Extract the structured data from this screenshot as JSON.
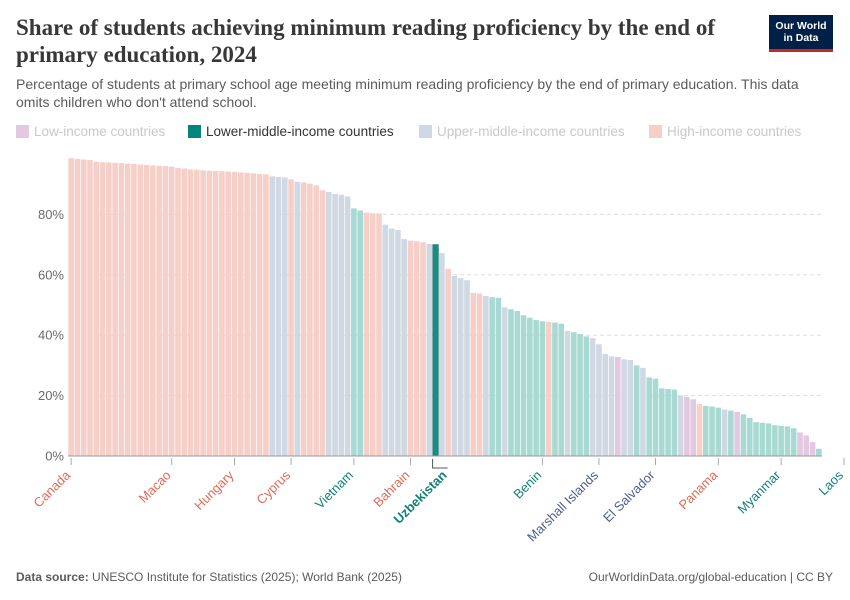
{
  "title": "Share of students achieving minimum reading proficiency by the end of primary education, 2024",
  "subtitle": "Percentage of students at primary school age meeting minimum reading proficiency by the end of primary education. This data omits children who don't attend school.",
  "logo": {
    "line1": "Our World",
    "line2": "in Data"
  },
  "legend": [
    {
      "label": "Low-income countries",
      "color": "#e3c8e1",
      "state": "muted"
    },
    {
      "label": "Lower-middle-income countries",
      "color": "#00847e",
      "state": "active"
    },
    {
      "label": "Upper-middle-income countries",
      "color": "#cfd8e3",
      "state": "muted"
    },
    {
      "label": "High-income countries",
      "color": "#f6cfc9",
      "state": "muted"
    }
  ],
  "footer": {
    "source_label": "Data source:",
    "source_text": "UNESCO Institute for Statistics (2025); World Bank (2025)",
    "url": "OurWorldinData.org/global-education | CC BY"
  },
  "chart_data": {
    "type": "bar",
    "title": "Share of students achieving minimum reading proficiency by the end of primary education, 2024",
    "ylabel": "",
    "ylim": [
      0,
      100
    ],
    "yticks": [
      "0%",
      "20%",
      "40%",
      "60%",
      "80%"
    ],
    "grid": true,
    "legend_placement": "top",
    "highlighted": "Uzbekistan",
    "group_colors": {
      "low": "#e3c8e1",
      "lower_middle": "#a8d9d3",
      "upper_middle": "#cfd8e3",
      "high": "#f6cfc9",
      "highlight": "#1a8c84"
    },
    "label_colors": {
      "high": "#e06b58",
      "lower_middle": "#138075",
      "upper_middle": "#4d5d92"
    },
    "labeled_countries": [
      {
        "name": "Canada",
        "index": 0,
        "group": "high"
      },
      {
        "name": "Macao",
        "index": 16,
        "group": "high"
      },
      {
        "name": "Hungary",
        "index": 26,
        "group": "high"
      },
      {
        "name": "Cyprus",
        "index": 35,
        "group": "high"
      },
      {
        "name": "Vietnam",
        "index": 45,
        "group": "lower_middle"
      },
      {
        "name": "Bahrain",
        "index": 54,
        "group": "high"
      },
      {
        "name": "Uzbekistan",
        "index": 58,
        "group": "lower_middle"
      },
      {
        "name": "Benin",
        "index": 75,
        "group": "lower_middle"
      },
      {
        "name": "Marshall Islands",
        "index": 84,
        "group": "upper_middle"
      },
      {
        "name": "El Salvador",
        "index": 93,
        "group": "upper_middle"
      },
      {
        "name": "Panama",
        "index": 103,
        "group": "high"
      },
      {
        "name": "Myanmar",
        "index": 113,
        "group": "lower_middle"
      },
      {
        "name": "Laos",
        "index": 123,
        "group": "lower_middle"
      }
    ],
    "values": [
      98.6,
      98.4,
      98.2,
      98.0,
      97.4,
      97.3,
      97.2,
      97.1,
      97.0,
      96.8,
      96.7,
      96.5,
      96.4,
      96.2,
      96.1,
      96.0,
      95.8,
      95.4,
      95.2,
      94.9,
      94.8,
      94.6,
      94.5,
      94.4,
      94.3,
      94.2,
      94.1,
      93.9,
      93.8,
      93.6,
      93.4,
      93.3,
      92.6,
      92.4,
      92.2,
      91.6,
      90.8,
      90.6,
      90.2,
      89.6,
      88.0,
      87.4,
      86.8,
      86.5,
      85.9,
      82.0,
      81.3,
      80.6,
      80.4,
      80.3,
      76.6,
      75.3,
      74.8,
      71.8,
      71.3,
      71.1,
      70.8,
      70.2,
      70.0,
      67.2,
      62.0,
      59.6,
      58.9,
      58.2,
      54.0,
      53.8,
      53.0,
      52.6,
      52.4,
      49.2,
      48.6,
      48.0,
      46.6,
      45.8,
      45.0,
      44.6,
      44.4,
      44.2,
      43.8,
      41.4,
      41.0,
      40.4,
      39.6,
      39.0,
      37.0,
      33.8,
      33.0,
      32.8,
      32.0,
      31.8,
      30.0,
      29.2,
      26.0,
      25.6,
      22.4,
      22.2,
      22.0,
      20.0,
      19.6,
      18.8,
      17.2,
      16.6,
      16.4,
      16.0,
      15.4,
      15.0,
      14.6,
      13.8,
      12.6,
      11.2,
      11.0,
      10.8,
      10.2,
      10.0,
      9.8,
      9.2,
      7.8,
      6.8,
      4.6,
      2.4
    ],
    "groups": [
      "high",
      "high",
      "high",
      "high",
      "high",
      "high",
      "high",
      "high",
      "high",
      "high",
      "high",
      "high",
      "high",
      "high",
      "high",
      "high",
      "high",
      "high",
      "high",
      "high",
      "high",
      "high",
      "high",
      "high",
      "high",
      "high",
      "high",
      "high",
      "high",
      "high",
      "high",
      "high",
      "upper_middle",
      "upper_middle",
      "upper_middle",
      "high",
      "upper_middle",
      "high",
      "high",
      "high",
      "high",
      "upper_middle",
      "upper_middle",
      "upper_middle",
      "upper_middle",
      "lower_middle",
      "lower_middle",
      "high",
      "high",
      "high",
      "upper_middle",
      "upper_middle",
      "upper_middle",
      "upper_middle",
      "high",
      "high",
      "high",
      "upper_middle",
      "lower_middle",
      "upper_middle",
      "high",
      "upper_middle",
      "upper_middle",
      "upper_middle",
      "high",
      "high",
      "upper_middle",
      "lower_middle",
      "lower_middle",
      "upper_middle",
      "lower_middle",
      "lower_middle",
      "lower_middle",
      "lower_middle",
      "lower_middle",
      "lower_middle",
      "high",
      "lower_middle",
      "lower_middle",
      "upper_middle",
      "lower_middle",
      "lower_middle",
      "lower_middle",
      "upper_middle",
      "upper_middle",
      "upper_middle",
      "upper_middle",
      "low",
      "upper_middle",
      "upper_middle",
      "lower_middle",
      "upper_middle",
      "lower_middle",
      "lower_middle",
      "lower_middle",
      "lower_middle",
      "lower_middle",
      "upper_middle",
      "low",
      "low",
      "high",
      "lower_middle",
      "lower_middle",
      "lower_middle",
      "upper_middle",
      "lower_middle",
      "low",
      "lower_middle",
      "lower_middle",
      "lower_middle",
      "lower_middle",
      "lower_middle",
      "lower_middle",
      "lower_middle",
      "lower_middle",
      "lower_middle",
      "low",
      "low",
      "low",
      "lower_middle"
    ]
  }
}
